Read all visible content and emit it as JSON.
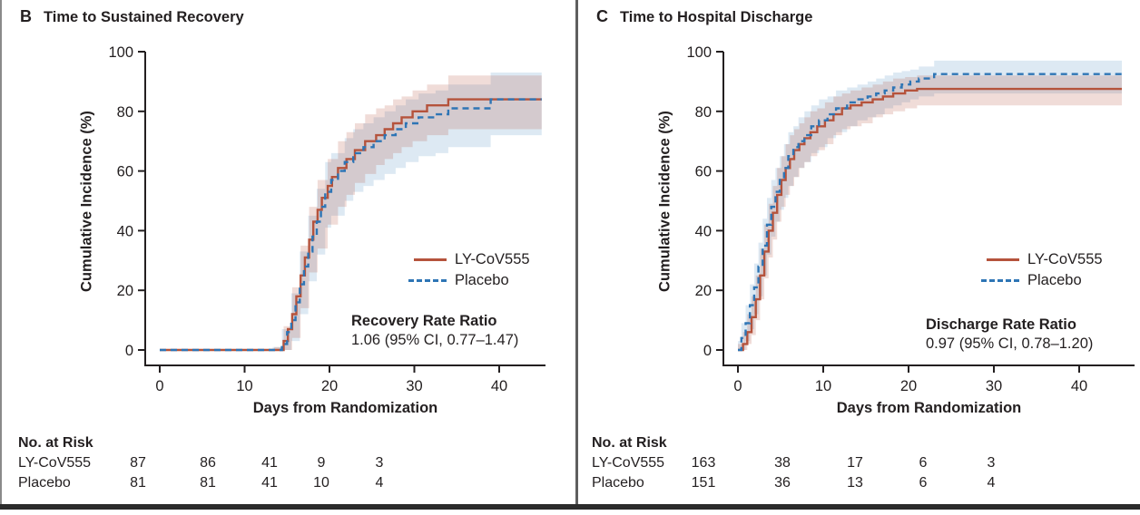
{
  "chart_data": [
    {
      "type": "line",
      "panel_letter": "B",
      "title": "Time to Sustained Recovery",
      "xlabel": "Days from Randomization",
      "ylabel": "Cumulative Incidence (%)",
      "xlim": [
        0,
        45
      ],
      "ylim": [
        0,
        100
      ],
      "xticks": [
        0,
        10,
        20,
        30,
        40
      ],
      "yticks": [
        0,
        20,
        40,
        60,
        80,
        100
      ],
      "grid": "off",
      "legend_position": "inside-right-middle",
      "annotation": {
        "label": "Recovery Rate Ratio",
        "value": "1.06 (95% CI, 0.77–1.47)"
      },
      "series": [
        {
          "name": "LY-CoV555",
          "line": "solid",
          "color": "#b5533c",
          "step_points": [
            [
              0,
              0
            ],
            [
              14,
              0
            ],
            [
              14.6,
              3
            ],
            [
              15.1,
              7
            ],
            [
              15.6,
              12
            ],
            [
              16.1,
              18
            ],
            [
              16.6,
              25
            ],
            [
              17.1,
              31
            ],
            [
              17.6,
              37
            ],
            [
              18.1,
              43
            ],
            [
              18.6,
              47
            ],
            [
              19.1,
              51
            ],
            [
              19.8,
              55
            ],
            [
              20.3,
              58
            ],
            [
              21,
              61
            ],
            [
              22,
              64
            ],
            [
              23,
              67
            ],
            [
              24.2,
              70
            ],
            [
              25.5,
              72
            ],
            [
              26.5,
              74
            ],
            [
              27.5,
              76
            ],
            [
              28.5,
              78
            ],
            [
              29.8,
              80
            ],
            [
              31.5,
              82
            ],
            [
              34,
              84
            ],
            [
              45,
              84
            ]
          ]
        },
        {
          "name": "Placebo",
          "line": "dashed",
          "color": "#2e75b5",
          "step_points": [
            [
              0,
              0
            ],
            [
              13.8,
              0
            ],
            [
              14.4,
              2
            ],
            [
              15,
              6
            ],
            [
              15.5,
              10
            ],
            [
              16,
              16
            ],
            [
              16.5,
              22
            ],
            [
              17,
              28
            ],
            [
              17.5,
              33
            ],
            [
              18,
              38
            ],
            [
              18.5,
              43
            ],
            [
              19,
              48
            ],
            [
              19.5,
              53
            ],
            [
              20.2,
              57
            ],
            [
              21,
              60
            ],
            [
              21.8,
              63
            ],
            [
              22.8,
              66
            ],
            [
              24,
              68
            ],
            [
              25.2,
              70
            ],
            [
              26.5,
              72
            ],
            [
              27.8,
              74
            ],
            [
              29,
              76
            ],
            [
              30.5,
              78
            ],
            [
              32.5,
              79
            ],
            [
              34,
              81
            ],
            [
              39,
              84
            ],
            [
              45,
              84
            ]
          ]
        }
      ],
      "confidence_bands": [
        {
          "series": "Placebo",
          "fill": "rgba(46,117,181,0.16)",
          "points": [
            [
              13.3,
              0,
              1
            ],
            [
              14.4,
              0,
              7
            ],
            [
              15.5,
              3,
              19
            ],
            [
              16.5,
              12,
              33
            ],
            [
              17.5,
              23,
              45
            ],
            [
              18.5,
              32,
              54
            ],
            [
              19.5,
              41,
              63
            ],
            [
              20.2,
              45,
              66
            ],
            [
              21.8,
              50,
              71
            ],
            [
              22.8,
              53,
              74
            ],
            [
              24,
              55,
              76
            ],
            [
              25.2,
              57,
              78
            ],
            [
              26.5,
              59,
              80
            ],
            [
              27.8,
              61,
              82
            ],
            [
              29,
              63,
              84
            ],
            [
              30.5,
              65,
              86
            ],
            [
              32.5,
              66,
              87
            ],
            [
              34,
              68,
              89
            ],
            [
              39,
              72,
              93
            ],
            [
              45,
              72,
              93
            ]
          ]
        },
        {
          "series": "LY-CoV555",
          "fill": "rgba(179,82,62,0.20)",
          "points": [
            [
              13.5,
              0,
              1
            ],
            [
              14.6,
              0,
              8
            ],
            [
              15.6,
              4,
              21
            ],
            [
              16.6,
              14,
              35
            ],
            [
              17.6,
              26,
              48
            ],
            [
              18.6,
              34,
              57
            ],
            [
              19.8,
              42,
              64
            ],
            [
              21,
              48,
              70
            ],
            [
              22,
              52,
              73
            ],
            [
              23,
              56,
              76
            ],
            [
              24.2,
              59,
              79
            ],
            [
              25.5,
              62,
              81
            ],
            [
              26.5,
              64,
              82
            ],
            [
              27.5,
              66,
              84
            ],
            [
              28.5,
              68,
              85
            ],
            [
              29.8,
              70,
              87
            ],
            [
              31.5,
              72,
              89
            ],
            [
              34,
              74,
              92
            ],
            [
              45,
              74,
              92
            ]
          ]
        }
      ],
      "risk_table": {
        "header": "No. at Risk",
        "rows": [
          {
            "label": "LY-CoV555",
            "values": [
              "87",
              "86",
              "41",
              "9",
              "3"
            ]
          },
          {
            "label": "Placebo",
            "values": [
              "81",
              "81",
              "41",
              "10",
              "4"
            ]
          }
        ]
      }
    },
    {
      "type": "line",
      "panel_letter": "C",
      "title": "Time to Hospital Discharge",
      "xlabel": "Days from Randomization",
      "ylabel": "Cumulative Incidence (%)",
      "xlim": [
        0,
        45
      ],
      "ylim": [
        0,
        100
      ],
      "xticks": [
        0,
        10,
        20,
        30,
        40
      ],
      "yticks": [
        0,
        20,
        40,
        60,
        80,
        100
      ],
      "grid": "off",
      "legend_position": "inside-right-middle",
      "annotation": {
        "label": "Discharge Rate Ratio",
        "value": "0.97 (95% CI, 0.78–1.20)"
      },
      "series": [
        {
          "name": "LY-CoV555",
          "line": "solid",
          "color": "#b5533c",
          "step_points": [
            [
              0,
              0
            ],
            [
              0.6,
              2
            ],
            [
              1.1,
              6
            ],
            [
              1.6,
              11
            ],
            [
              2.1,
              17
            ],
            [
              2.6,
              25
            ],
            [
              3.1,
              33
            ],
            [
              3.6,
              40
            ],
            [
              4.1,
              46
            ],
            [
              4.6,
              52
            ],
            [
              5.1,
              57
            ],
            [
              5.6,
              61
            ],
            [
              6.1,
              64
            ],
            [
              6.6,
              67
            ],
            [
              7.2,
              69
            ],
            [
              7.8,
              71
            ],
            [
              8.5,
              73
            ],
            [
              9.3,
              75
            ],
            [
              10.2,
              77
            ],
            [
              11.2,
              79
            ],
            [
              12.2,
              81
            ],
            [
              13.2,
              82
            ],
            [
              14.5,
              83
            ],
            [
              15.8,
              84
            ],
            [
              17,
              85
            ],
            [
              18.2,
              86
            ],
            [
              19.6,
              87
            ],
            [
              21,
              87.5
            ],
            [
              45,
              87.5
            ]
          ]
        },
        {
          "name": "Placebo",
          "line": "dashed",
          "color": "#2e75b5",
          "step_points": [
            [
              0,
              0
            ],
            [
              0.4,
              4
            ],
            [
              0.9,
              9
            ],
            [
              1.4,
              15
            ],
            [
              1.9,
              21
            ],
            [
              2.4,
              28
            ],
            [
              2.9,
              35
            ],
            [
              3.4,
              42
            ],
            [
              3.9,
              48
            ],
            [
              4.4,
              53
            ],
            [
              4.9,
              57
            ],
            [
              5.4,
              61
            ],
            [
              5.9,
              65
            ],
            [
              6.5,
              68
            ],
            [
              7.1,
              70
            ],
            [
              7.8,
              72
            ],
            [
              8.6,
              75
            ],
            [
              9.5,
              77
            ],
            [
              10.5,
              79
            ],
            [
              11.5,
              81
            ],
            [
              12.8,
              83
            ],
            [
              14,
              84
            ],
            [
              15.2,
              85
            ],
            [
              16.2,
              86
            ],
            [
              17.2,
              87
            ],
            [
              18.2,
              88
            ],
            [
              19.2,
              89
            ],
            [
              20.2,
              90
            ],
            [
              21.2,
              91
            ],
            [
              23,
              92.5
            ],
            [
              45,
              92.5
            ]
          ]
        }
      ],
      "confidence_bands": [
        {
          "series": "Placebo",
          "fill": "rgba(46,117,181,0.16)",
          "points": [
            [
              0,
              0,
              3
            ],
            [
              0.4,
              0,
              9
            ],
            [
              0.9,
              3,
              15
            ],
            [
              1.4,
              7,
              22
            ],
            [
              1.9,
              12,
              29
            ],
            [
              2.4,
              18,
              36
            ],
            [
              2.9,
              25,
              44
            ],
            [
              3.4,
              32,
              51
            ],
            [
              3.9,
              38,
              57
            ],
            [
              4.4,
              43,
              61
            ],
            [
              4.9,
              47,
              65
            ],
            [
              5.4,
              51,
              69
            ],
            [
              5.9,
              55,
              73
            ],
            [
              6.5,
              58,
              75
            ],
            [
              7.1,
              61,
              78
            ],
            [
              7.8,
              63,
              80
            ],
            [
              8.6,
              66,
              82
            ],
            [
              9.5,
              68,
              84
            ],
            [
              10.5,
              71,
              85
            ],
            [
              11.5,
              73,
              87
            ],
            [
              12.8,
              75,
              88
            ],
            [
              14,
              77,
              89
            ],
            [
              15.2,
              78,
              90
            ],
            [
              16.2,
              79,
              91
            ],
            [
              17.2,
              81,
              92
            ],
            [
              18.2,
              82,
              93
            ],
            [
              19.2,
              83,
              93.5
            ],
            [
              20.2,
              84,
              94
            ],
            [
              21.2,
              85,
              95
            ],
            [
              23,
              86,
              97
            ],
            [
              45,
              86,
              97
            ]
          ]
        },
        {
          "series": "LY-CoV555",
          "fill": "rgba(179,82,62,0.20)",
          "points": [
            [
              0,
              0,
              2
            ],
            [
              0.6,
              0,
              6
            ],
            [
              1.1,
              2,
              12
            ],
            [
              1.6,
              5,
              18
            ],
            [
              2.1,
              10,
              25
            ],
            [
              2.6,
              17,
              34
            ],
            [
              3.1,
              24,
              42
            ],
            [
              3.6,
              31,
              49
            ],
            [
              4.1,
              37,
              55
            ],
            [
              4.6,
              43,
              61
            ],
            [
              5.1,
              48,
              65
            ],
            [
              5.6,
              52,
              69
            ],
            [
              6.1,
              55,
              72
            ],
            [
              6.6,
              58,
              74
            ],
            [
              7.2,
              61,
              76
            ],
            [
              7.8,
              63,
              78
            ],
            [
              8.5,
              65,
              80
            ],
            [
              9.3,
              67,
              81
            ],
            [
              10.2,
              69,
              83
            ],
            [
              11.2,
              72,
              85
            ],
            [
              12.2,
              74,
              86
            ],
            [
              13.2,
              75,
              87
            ],
            [
              14.5,
              76,
              88
            ],
            [
              15.8,
              78,
              89
            ],
            [
              17,
              79,
              90
            ],
            [
              18.2,
              80,
              91
            ],
            [
              19.6,
              81,
              91.5
            ],
            [
              21,
              82,
              92
            ],
            [
              45,
              82,
              92
            ]
          ]
        }
      ],
      "risk_table": {
        "header": "No. at Risk",
        "rows": [
          {
            "label": "LY-CoV555",
            "values": [
              "163",
              "38",
              "17",
              "6",
              "3"
            ]
          },
          {
            "label": "Placebo",
            "values": [
              "151",
              "36",
              "13",
              "6",
              "4"
            ]
          }
        ]
      }
    }
  ]
}
